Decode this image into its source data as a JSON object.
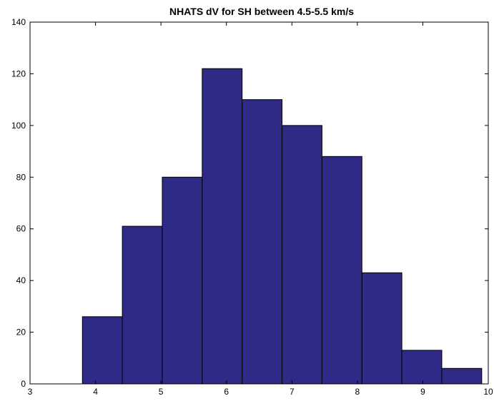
{
  "chart_data": {
    "type": "bar",
    "title": "NHATS dV for SH between 4.5-5.5 km/s",
    "xlabel": "",
    "ylabel": "",
    "xlim": [
      3,
      10
    ],
    "ylim": [
      0,
      140
    ],
    "xticks": [
      3,
      4,
      5,
      6,
      7,
      8,
      9,
      10
    ],
    "xtick_labels": [
      "3",
      "4",
      "5",
      "6",
      "7",
      "8",
      "9",
      "10"
    ],
    "yticks": [
      0,
      20,
      40,
      60,
      80,
      100,
      120,
      140
    ],
    "ytick_labels": [
      "0",
      "20",
      "40",
      "60",
      "80",
      "100",
      "120",
      "140"
    ],
    "bin_edges": [
      3.8,
      4.41,
      5.02,
      5.63,
      6.24,
      6.85,
      7.46,
      8.07,
      8.68,
      9.29,
      9.9
    ],
    "values": [
      26,
      61,
      80,
      122,
      110,
      100,
      88,
      43,
      13,
      6
    ],
    "bar_color": "#2e2a85",
    "bar_edge_color": "#000000",
    "grid": false,
    "legend": "none"
  }
}
